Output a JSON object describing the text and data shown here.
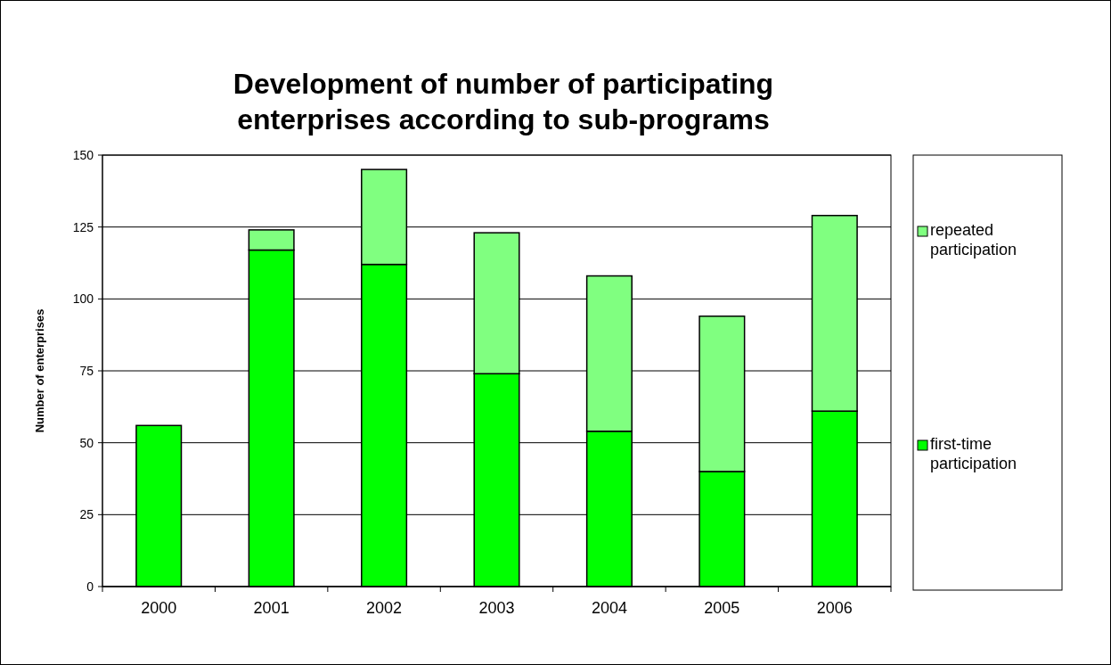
{
  "chart_data": {
    "type": "bar",
    "title": "Development of number of participating enterprises according to sub-programs",
    "ylabel": "Number of enterprises",
    "categories": [
      "2000",
      "2001",
      "2002",
      "2003",
      "2004",
      "2005",
      "2006"
    ],
    "series": [
      {
        "name": "first-time participation",
        "color": "#00ff00",
        "values": [
          56,
          117,
          112,
          74,
          54,
          40,
          61
        ]
      },
      {
        "name": "repeated participation",
        "color": "#80ff80",
        "values": [
          0,
          7,
          33,
          49,
          54,
          54,
          68
        ]
      }
    ],
    "stacked": true,
    "ylim": [
      0,
      150
    ],
    "yticks": [
      0,
      25,
      50,
      75,
      100,
      125,
      150
    ],
    "grid": "y",
    "legend": "right"
  }
}
